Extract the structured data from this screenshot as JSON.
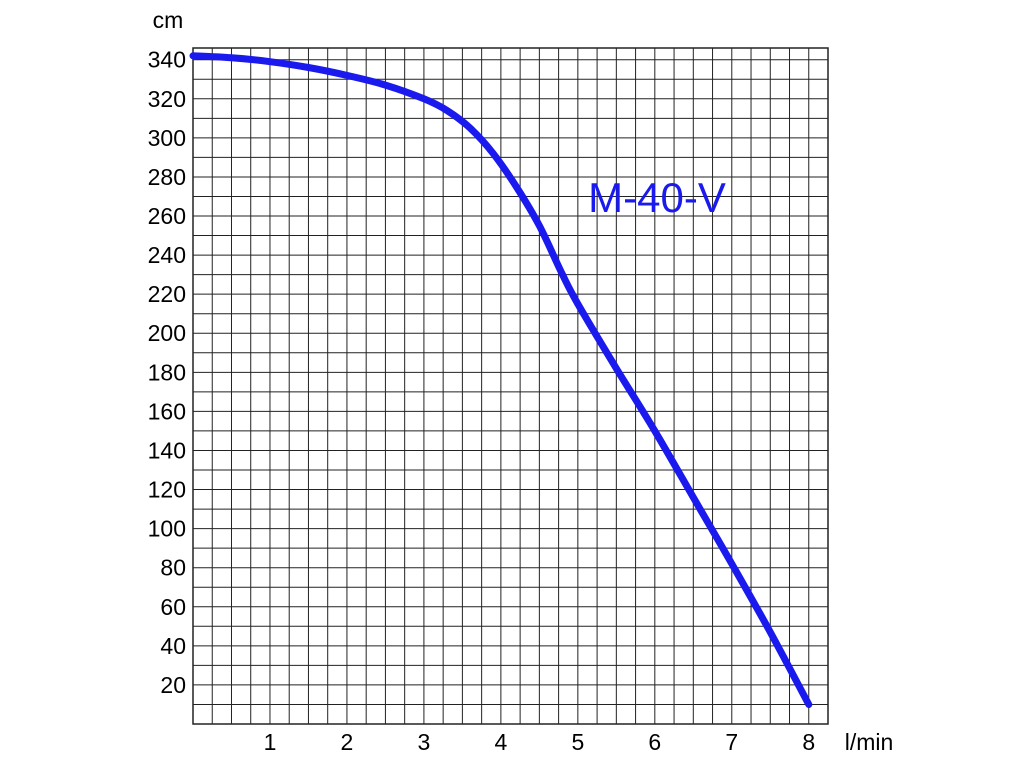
{
  "chart_data": {
    "type": "line",
    "title": "",
    "xlabel": "l/min",
    "ylabel": "cm",
    "xlim": [
      0,
      8.25
    ],
    "ylim": [
      0,
      346
    ],
    "x_ticks": [
      1,
      2,
      3,
      4,
      5,
      6,
      7,
      8
    ],
    "y_ticks": [
      20,
      40,
      60,
      80,
      100,
      120,
      140,
      160,
      180,
      200,
      220,
      240,
      260,
      280,
      300,
      320,
      340
    ],
    "grid": true,
    "series": [
      {
        "name": "M-40-V",
        "color": "#1a1aee",
        "x": [
          0,
          0.5,
          1,
          1.5,
          2,
          2.5,
          3,
          3.3,
          3.6,
          3.9,
          4.2,
          4.5,
          4.8,
          5.0,
          5.5,
          6.0,
          6.5,
          7.0,
          7.5,
          8.0
        ],
        "y": [
          342,
          341,
          339,
          336,
          332,
          327,
          320,
          314,
          305,
          292,
          275,
          255,
          230,
          215,
          182,
          150,
          116,
          82,
          47,
          10
        ]
      }
    ]
  }
}
